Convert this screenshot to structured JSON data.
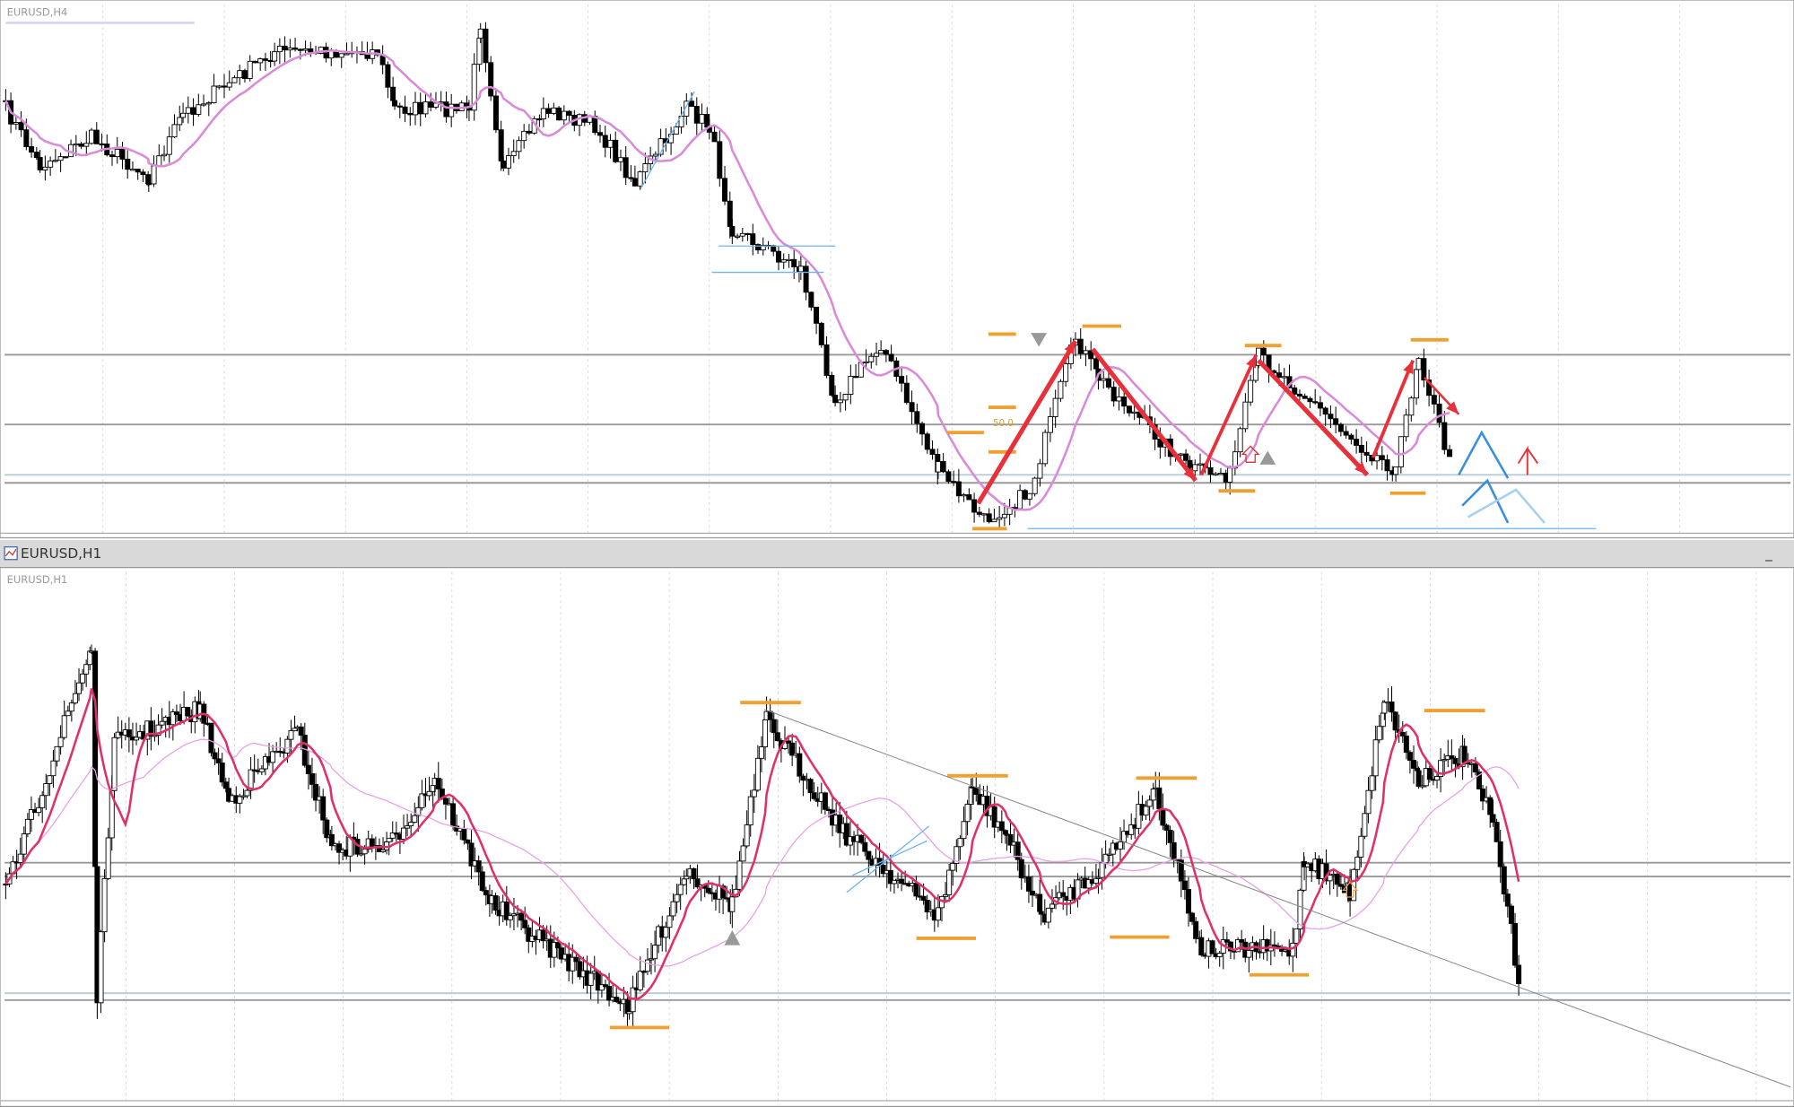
{
  "top_chart": {
    "label": "EURUSD,H4",
    "fib_label": "50.0"
  },
  "window": {
    "title": "EURUSD,H1"
  },
  "bottom_chart": {
    "label": "EURUSD,H1"
  }
}
